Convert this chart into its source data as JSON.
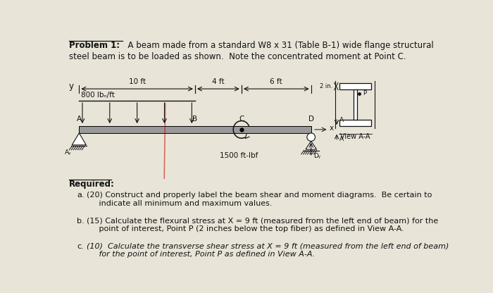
{
  "background_color": "#e8e5d8",
  "text_color": "#111111",
  "beam_color": "#999999",
  "red_line_color": "#cc0000",
  "title_bold": "Problem 1:",
  "title_rest_line1": "  A beam made from a standard W8 x 31 (Table B-1) wide flange structural",
  "title_rest_line2": "steel beam is to be loaded as shown.  Note the concentrated moment at Point C.",
  "y_label": "y",
  "dims": [
    "10 ft",
    "4 ft",
    "6 ft"
  ],
  "dim_spans_ft": [
    10,
    4,
    6
  ],
  "load_label": "800 lbₙ/ft",
  "moment_label": "1500 ft-lbf",
  "point_labels": [
    "A",
    "B",
    "C",
    "D"
  ],
  "required_label": "Required:",
  "items_letter": [
    "a.",
    "b.",
    "c."
  ],
  "items_text": [
    "(20) Construct and properly label the beam shear and moment diagrams.  Be certain to\n     indicate all minimum and maximum values.",
    "(15) Calculate the flexural stress at X = 9 ft (measured from the left end of beam) for the\n     point of interest, Point P (2 inches below the top fiber) as defined in View A-A.",
    "(10)  Calculate the transverse shear stress at X = 9 ft (measured from the left end of beam)\n     for the point of interest, Point P as defined in View A-A."
  ],
  "view_label": "View A-A",
  "two_in_label": "2 in.",
  "p_label": "P",
  "fs_base": 8.5
}
